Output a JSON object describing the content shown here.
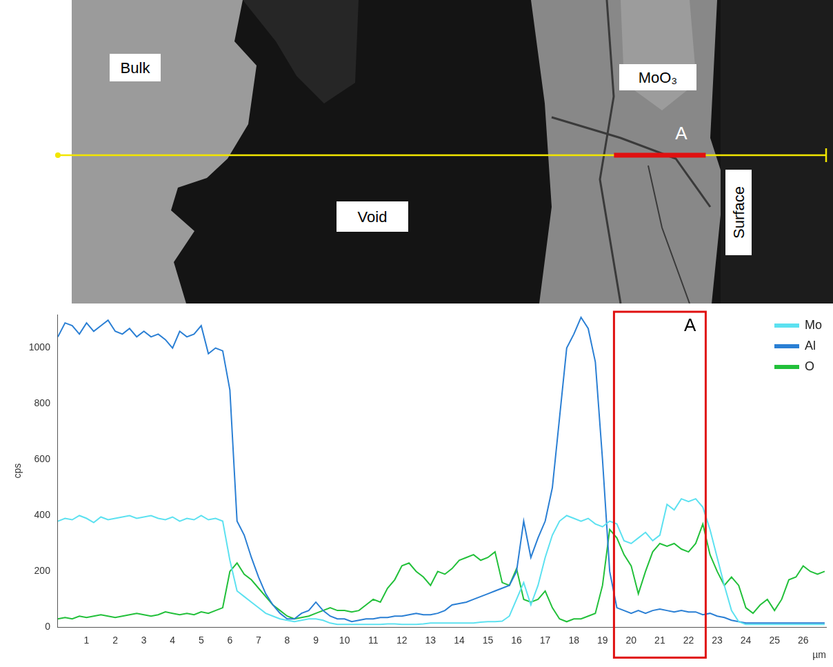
{
  "image": {
    "labels": {
      "bulk": "Bulk",
      "oxide": "MoO₃",
      "marker": "A",
      "void": "Void",
      "surface": "Surface"
    }
  },
  "chart_data": {
    "type": "line",
    "x_label": "µm",
    "y_label": "cps",
    "x": [
      0,
      0.25,
      0.5,
      0.75,
      1,
      1.25,
      1.5,
      1.75,
      2,
      2.25,
      2.5,
      2.75,
      3,
      3.25,
      3.5,
      3.75,
      4,
      4.25,
      4.5,
      4.75,
      5,
      5.25,
      5.5,
      5.75,
      6,
      6.25,
      6.5,
      6.75,
      7,
      7.25,
      7.5,
      7.75,
      8,
      8.25,
      8.5,
      8.75,
      9,
      9.25,
      9.5,
      9.75,
      10,
      10.25,
      10.5,
      10.75,
      11,
      11.25,
      11.5,
      11.75,
      12,
      12.25,
      12.5,
      12.75,
      13,
      13.25,
      13.5,
      13.75,
      14,
      14.25,
      14.5,
      14.75,
      15,
      15.25,
      15.5,
      15.75,
      16,
      16.25,
      16.5,
      16.75,
      17,
      17.25,
      17.5,
      17.75,
      18,
      18.25,
      18.5,
      18.75,
      19,
      19.25,
      19.5,
      19.75,
      20,
      20.25,
      20.5,
      20.75,
      21,
      21.25,
      21.5,
      21.75,
      22,
      22.25,
      22.5,
      22.75,
      23,
      23.25,
      23.5,
      23.75,
      24,
      24.25,
      24.5,
      24.75,
      25,
      25.25,
      25.5,
      25.75,
      26,
      26.25,
      26.5,
      26.75
    ],
    "series": [
      {
        "name": "Mo",
        "color": "#5ce1f0",
        "values": [
          380,
          390,
          385,
          400,
          390,
          375,
          395,
          385,
          390,
          395,
          400,
          390,
          395,
          400,
          390,
          385,
          395,
          380,
          390,
          385,
          400,
          385,
          390,
          380,
          240,
          130,
          110,
          90,
          70,
          50,
          40,
          30,
          25,
          20,
          25,
          30,
          30,
          25,
          15,
          10,
          10,
          10,
          10,
          10,
          10,
          10,
          12,
          12,
          10,
          10,
          10,
          12,
          15,
          15,
          15,
          15,
          15,
          15,
          15,
          18,
          20,
          20,
          22,
          40,
          100,
          160,
          80,
          150,
          250,
          330,
          380,
          400,
          390,
          380,
          390,
          370,
          360,
          380,
          370,
          310,
          300,
          320,
          340,
          310,
          330,
          440,
          420,
          460,
          450,
          460,
          430,
          350,
          250,
          150,
          60,
          20,
          10,
          10,
          10,
          10,
          10,
          10,
          10,
          10,
          10,
          10,
          10,
          10
        ]
      },
      {
        "name": "Al",
        "color": "#2a7fd4",
        "values": [
          1040,
          1090,
          1080,
          1050,
          1090,
          1060,
          1080,
          1100,
          1060,
          1050,
          1070,
          1040,
          1060,
          1040,
          1050,
          1030,
          1000,
          1060,
          1040,
          1050,
          1080,
          980,
          1000,
          990,
          850,
          380,
          330,
          250,
          180,
          120,
          80,
          50,
          30,
          30,
          50,
          60,
          90,
          60,
          40,
          30,
          30,
          20,
          25,
          30,
          30,
          35,
          35,
          40,
          40,
          45,
          50,
          45,
          45,
          50,
          60,
          80,
          85,
          90,
          100,
          110,
          120,
          130,
          140,
          150,
          200,
          380,
          250,
          320,
          380,
          500,
          750,
          1000,
          1050,
          1110,
          1070,
          950,
          600,
          200,
          70,
          60,
          50,
          60,
          50,
          60,
          65,
          60,
          55,
          60,
          55,
          55,
          45,
          50,
          40,
          35,
          25,
          20,
          15,
          15,
          15,
          15,
          15,
          15,
          15,
          15,
          15,
          15,
          15,
          15
        ]
      },
      {
        "name": "O",
        "color": "#22c03a",
        "values": [
          30,
          35,
          30,
          40,
          35,
          40,
          45,
          40,
          35,
          40,
          45,
          50,
          45,
          40,
          45,
          55,
          50,
          45,
          50,
          45,
          55,
          50,
          60,
          70,
          200,
          230,
          190,
          170,
          140,
          110,
          80,
          60,
          40,
          30,
          35,
          40,
          50,
          60,
          70,
          60,
          60,
          55,
          60,
          80,
          100,
          90,
          140,
          170,
          220,
          230,
          200,
          180,
          150,
          200,
          190,
          210,
          240,
          250,
          260,
          240,
          250,
          270,
          160,
          150,
          210,
          100,
          90,
          100,
          130,
          70,
          30,
          20,
          30,
          30,
          40,
          50,
          150,
          350,
          320,
          260,
          220,
          120,
          200,
          270,
          300,
          290,
          300,
          280,
          270,
          300,
          370,
          260,
          200,
          150,
          180,
          150,
          70,
          50,
          80,
          100,
          60,
          100,
          170,
          180,
          220,
          200,
          190,
          200
        ]
      }
    ],
    "xlim": [
      0,
      26.8
    ],
    "xticks": [
      1,
      2,
      3,
      4,
      5,
      6,
      7,
      8,
      9,
      10,
      11,
      12,
      13,
      14,
      15,
      16,
      17,
      18,
      19,
      20,
      21,
      22,
      23,
      24,
      25,
      26
    ],
    "ylim": [
      0,
      1120
    ],
    "yticks": [
      0,
      200,
      400,
      600,
      800,
      1000
    ],
    "grid": false,
    "legend": "upper right",
    "annotations": [
      {
        "label": "A",
        "x": [
          19.4,
          22.6
        ]
      }
    ]
  }
}
